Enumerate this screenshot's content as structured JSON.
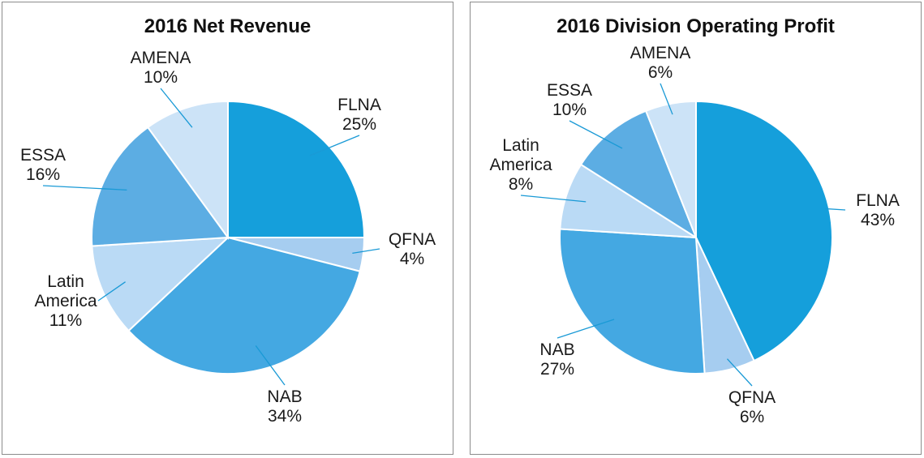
{
  "chart_data": [
    {
      "type": "pie",
      "title": "2016 Net Revenue",
      "slices": [
        {
          "name": "FLNA",
          "label_lines": [
            "FLNA"
          ],
          "value": 25,
          "pct": "25%",
          "color": "#159fdb"
        },
        {
          "name": "QFNA",
          "label_lines": [
            "QFNA"
          ],
          "value": 4,
          "pct": "4%",
          "color": "#a6cdf0"
        },
        {
          "name": "NAB",
          "label_lines": [
            "NAB"
          ],
          "value": 34,
          "pct": "34%",
          "color": "#44a8e2"
        },
        {
          "name": "Latin America",
          "label_lines": [
            "Latin",
            "America"
          ],
          "value": 11,
          "pct": "11%",
          "color": "#badaf5"
        },
        {
          "name": "ESSA",
          "label_lines": [
            "ESSA"
          ],
          "value": 16,
          "pct": "16%",
          "color": "#5cade3"
        },
        {
          "name": "AMENA",
          "label_lines": [
            "AMENA"
          ],
          "value": 10,
          "pct": "10%",
          "color": "#cce3f7"
        }
      ]
    },
    {
      "type": "pie",
      "title": "2016 Division Operating Profit",
      "slices": [
        {
          "name": "FLNA",
          "label_lines": [
            "FLNA"
          ],
          "value": 43,
          "pct": "43%",
          "color": "#159fdb"
        },
        {
          "name": "QFNA",
          "label_lines": [
            "QFNA"
          ],
          "value": 6,
          "pct": "6%",
          "color": "#a6cdf0"
        },
        {
          "name": "NAB",
          "label_lines": [
            "NAB"
          ],
          "value": 27,
          "pct": "27%",
          "color": "#44a8e2"
        },
        {
          "name": "Latin America",
          "label_lines": [
            "Latin",
            "America"
          ],
          "value": 8,
          "pct": "8%",
          "color": "#badaf5"
        },
        {
          "name": "ESSA",
          "label_lines": [
            "ESSA"
          ],
          "value": 10,
          "pct": "10%",
          "color": "#5cade3"
        },
        {
          "name": "AMENA",
          "label_lines": [
            "AMENA"
          ],
          "value": 6,
          "pct": "6%",
          "color": "#cce3f7"
        }
      ]
    }
  ]
}
